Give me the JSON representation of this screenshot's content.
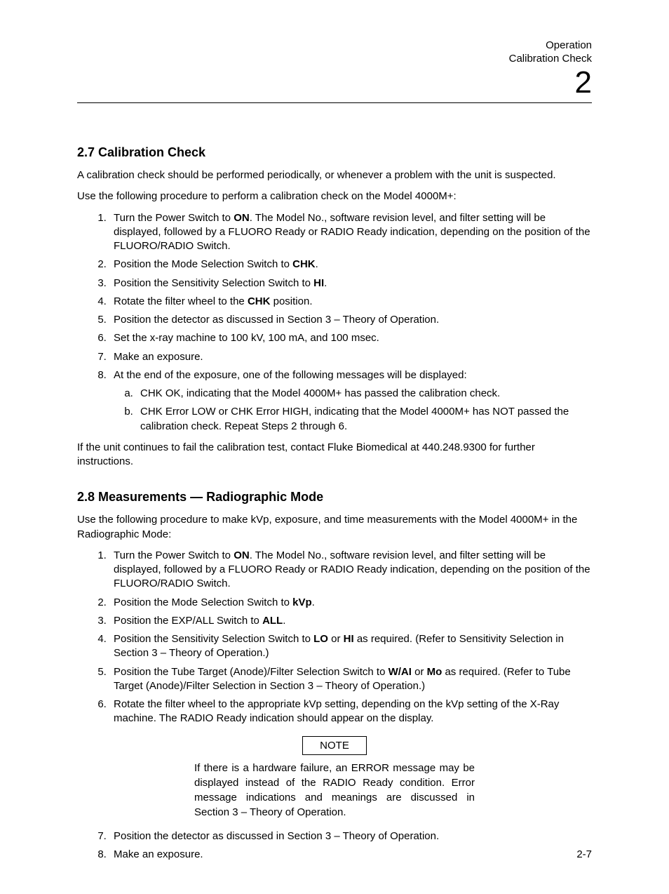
{
  "chapter": {
    "title": "Operation",
    "section": "Calibration Check",
    "number": "2"
  },
  "cal_heading": "2.7 Calibration Check",
  "cal_intro_1": "A calibration check should be performed periodically, or whenever a problem with the unit is suspected.",
  "cal_intro_2": "Use the following procedure to perform a calibration check on the Model 4000M+:",
  "cal_step1_a": "Turn the Power Switch to ",
  "cal_step1_b": "ON",
  "cal_step1_c": ".  The Model No., software revision level, and filter setting will be displayed, followed by a FLUORO Ready or RADIO Ready indication, depending on the position of the FLUORO/RADIO Switch.",
  "cal_step2_a": "Position the Mode Selection Switch to ",
  "cal_step2_b": "CHK",
  "cal_step2_c": ".",
  "cal_step3_a": "Position the Sensitivity Selection Switch to ",
  "cal_step3_b": "HI",
  "cal_step3_c": ".",
  "cal_step4_a": "Rotate the filter wheel to the ",
  "cal_step4_b": "CHK",
  "cal_step4_c": " position.",
  "cal_step5": "Position the detector as discussed in Section 3 – Theory of Operation.",
  "cal_step6": "Set the x-ray machine to 100 kV, 100 mA, and 100 msec.",
  "cal_step7": "Make an exposure.",
  "cal_step8": "At the end of the exposure, one of the following messages will be displayed:",
  "cal_step8a": "CHK OK, indicating that the Model 4000M+ has passed the calibration check.",
  "cal_step8b": "CHK Error LOW or CHK Error HIGH, indicating that the Model 4000M+ has NOT passed the calibration check.  Repeat Steps 2 through 6.",
  "cal_outro": "If the unit continues to fail the calibration test, contact Fluke Biomedical at 440.248.9300 for further instructions.",
  "radio_heading": "2.8 Measurements — Radiographic Mode",
  "radio_intro": "Use the following procedure to make kVp, exposure, and time measurements with the Model 4000M+ in the Radiographic Mode:",
  "radio_step1_a": "Turn the Power Switch to ",
  "radio_step1_b": "ON",
  "radio_step1_c": ".  The Model No., software revision level, and filter setting will be displayed, followed by a FLUORO Ready or RADIO Ready indication, depending on the position of the FLUORO/RADIO Switch.",
  "radio_step2_a": "Position the Mode Selection Switch to ",
  "radio_step2_b": "kVp",
  "radio_step2_c": ".",
  "radio_step3_a": "Position the EXP/ALL Switch to ",
  "radio_step3_b": "ALL",
  "radio_step3_c": ".",
  "radio_step4_a": "Position the Sensitivity Selection Switch to ",
  "radio_step4_b": "LO",
  "radio_step4_c": " or ",
  "radio_step4_d": "HI",
  "radio_step4_e": " as required.  (Refer to Sensitivity Selection in Section 3 – Theory of Operation.)",
  "radio_step5_a": "Position the Tube Target (Anode)/Filter Selection Switch to ",
  "radio_step5_b": "W/AI",
  "radio_step5_c": " or ",
  "radio_step5_d": "Mo",
  "radio_step5_e": " as required.  (Refer to Tube Target (Anode)/Filter Selection in Section 3 – Theory of Operation.)",
  "radio_step6": "Rotate the filter wheel to the appropriate kVp setting, depending on the kVp setting of the X-Ray machine.  The RADIO Ready indication should appear on the display.",
  "note_label": "NOTE",
  "note_text": "If there is a hardware failure, an ERROR message may be displayed instead of the RADIO Ready condition.  Error message indications and meanings are discussed in Section 3 – Theory of Operation.",
  "radio_step7": "Position the detector as discussed in Section 3 – Theory of Operation.",
  "radio_step8": "Make an exposure.",
  "page_number": "2-7"
}
